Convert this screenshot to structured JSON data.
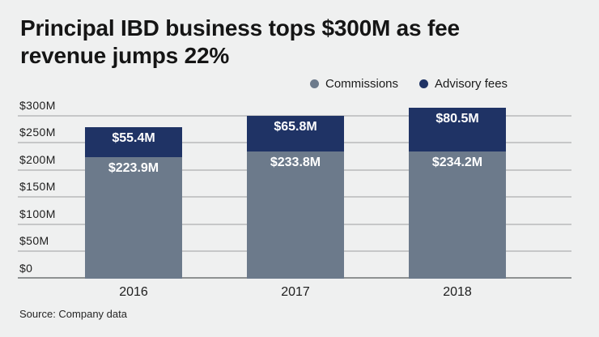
{
  "header": {
    "title_lines": [
      "Principal IBD business tops $300M as fee",
      "revenue jumps 22%"
    ]
  },
  "footer": {
    "source": "Source: Company data"
  },
  "chart_data": {
    "type": "bar",
    "stacked": true,
    "title": "Principal IBD business tops $300M as fee revenue jumps 22%",
    "categories": [
      "2016",
      "2017",
      "2018"
    ],
    "series": [
      {
        "name": "Commissions",
        "color": "#6c7a8b",
        "values": [
          223.9,
          233.8,
          234.2
        ],
        "value_labels": [
          "$223.9M",
          "$233.8M",
          "$234.2M"
        ]
      },
      {
        "name": "Advisory fees",
        "color": "#1f3365",
        "values": [
          55.4,
          65.8,
          80.5
        ],
        "value_labels": [
          "$55.4M",
          "$65.8M",
          "$80.5M"
        ]
      }
    ],
    "totals": [
      279.3,
      299.6,
      314.7
    ],
    "y_axis": {
      "ticks": [
        {
          "label": "$300M",
          "value": 300
        },
        {
          "label": "$250M",
          "value": 250
        },
        {
          "label": "$200M",
          "value": 200
        },
        {
          "label": "$150M",
          "value": 150
        },
        {
          "label": "$100M",
          "value": 100
        },
        {
          "label": "$50M",
          "value": 50
        },
        {
          "label": "$0",
          "value": 0
        }
      ],
      "ylim": [
        0,
        322
      ]
    },
    "grid": true,
    "legend_position": "top-right",
    "colors": {
      "background": "#eff0f0",
      "gridline": "#c6c7c8",
      "baseline": "#8e9192",
      "bar_label_text": "#ffffff",
      "text": "#161616"
    }
  }
}
